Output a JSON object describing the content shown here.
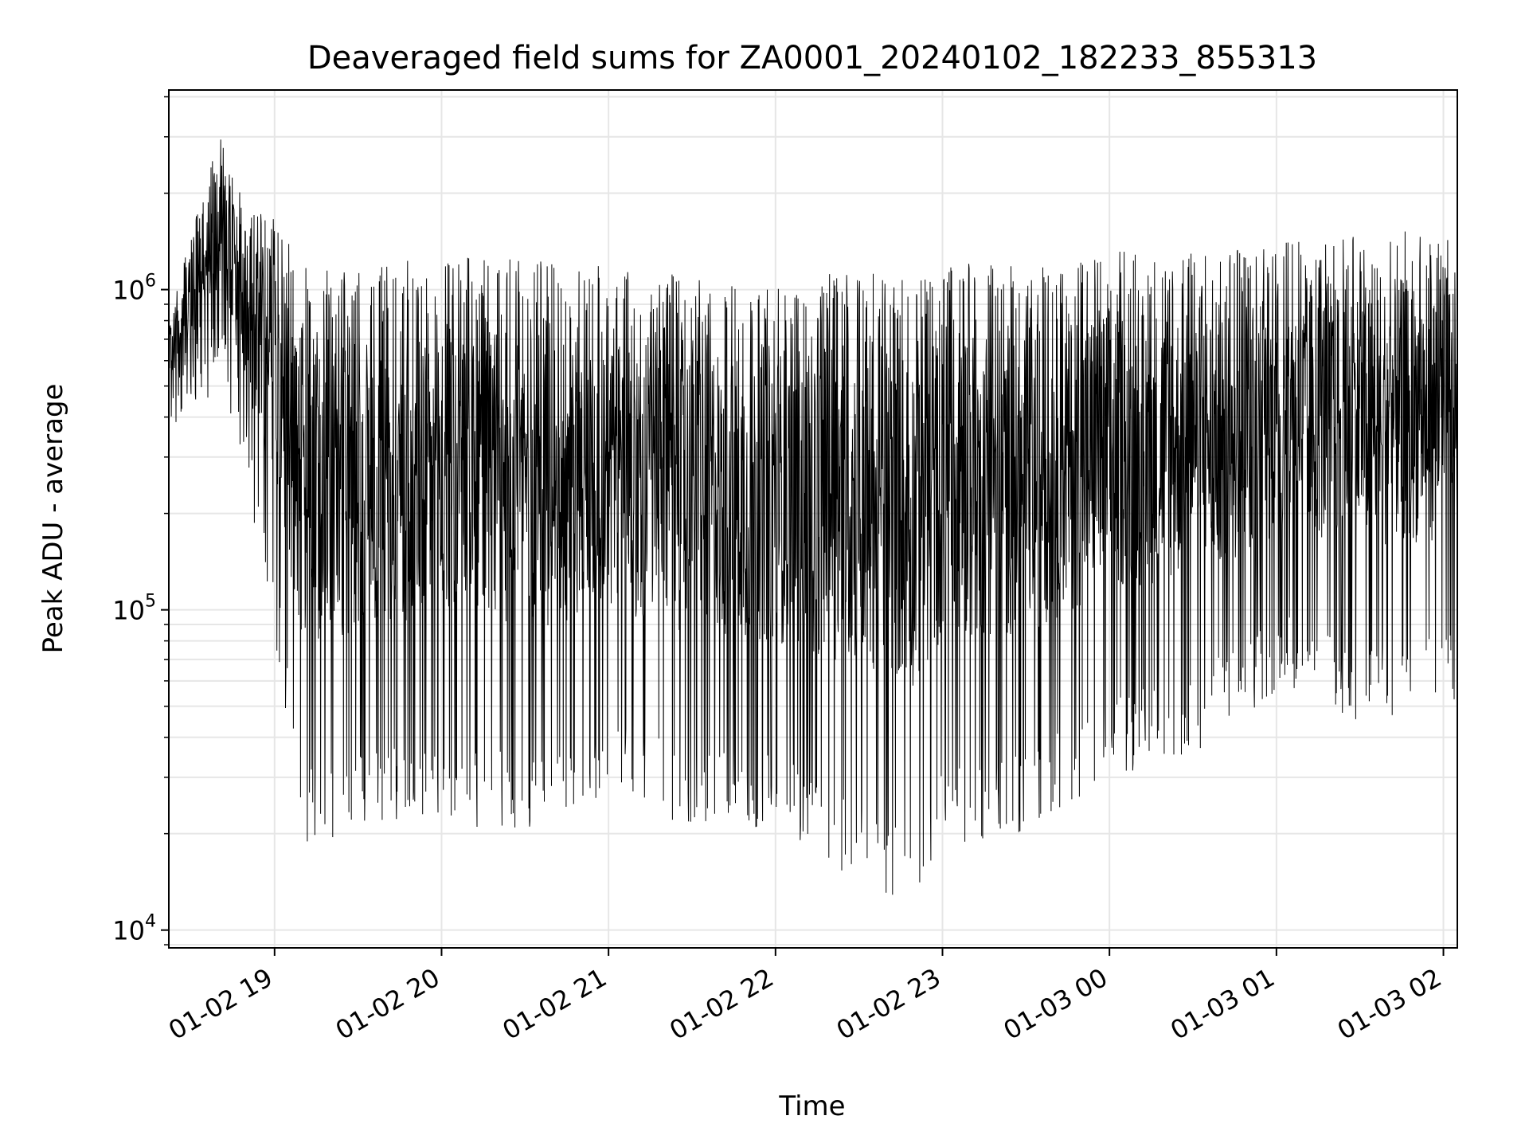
{
  "chart_data": {
    "type": "line",
    "title": "Deaveraged field sums for ZA0001_20240102_182233_855313",
    "xlabel": "Time",
    "ylabel": "Peak ADU - average",
    "yscale": "log",
    "xlim": [
      "2024-01-02 18:22",
      "2024-01-03 02:05"
    ],
    "ylim": [
      8800,
      4200000
    ],
    "grid": true,
    "line_color": "#000000",
    "x_ticks": [
      {
        "value": "2024-01-02 19:00",
        "label": "01-02 19"
      },
      {
        "value": "2024-01-02 20:00",
        "label": "01-02 20"
      },
      {
        "value": "2024-01-02 21:00",
        "label": "01-02 21"
      },
      {
        "value": "2024-01-02 22:00",
        "label": "01-02 22"
      },
      {
        "value": "2024-01-02 23:00",
        "label": "01-02 23"
      },
      {
        "value": "2024-01-03 00:00",
        "label": "01-03 00"
      },
      {
        "value": "2024-01-03 01:00",
        "label": "01-03 01"
      },
      {
        "value": "2024-01-03 02:00",
        "label": "01-03 02"
      }
    ],
    "y_ticks": [
      {
        "value": 10000,
        "base": "10",
        "exp": "4"
      },
      {
        "value": 100000,
        "base": "10",
        "exp": "5"
      },
      {
        "value": 1000000,
        "base": "10",
        "exp": "6"
      }
    ],
    "series": [
      {
        "envelope": [
          {
            "x": "2024-01-02 18:22",
            "upper": 800000,
            "lower": 400000
          },
          {
            "x": "2024-01-02 18:30",
            "upper": 1600000,
            "lower": 350000
          },
          {
            "x": "2024-01-02 18:40",
            "upper": 3100000,
            "lower": 550000
          },
          {
            "x": "2024-01-02 18:50",
            "upper": 1800000,
            "lower": 250000
          },
          {
            "x": "2024-01-02 19:00",
            "upper": 1700000,
            "lower": 80000
          },
          {
            "x": "2024-01-02 19:10",
            "upper": 1200000,
            "lower": 18000
          },
          {
            "x": "2024-01-02 19:20",
            "upper": 1150000,
            "lower": 19000
          },
          {
            "x": "2024-01-02 19:40",
            "upper": 1200000,
            "lower": 22000
          },
          {
            "x": "2024-01-02 20:00",
            "upper": 1300000,
            "lower": 21000
          },
          {
            "x": "2024-01-02 20:30",
            "upper": 1250000,
            "lower": 20000
          },
          {
            "x": "2024-01-02 21:00",
            "upper": 1200000,
            "lower": 26000
          },
          {
            "x": "2024-01-02 21:30",
            "upper": 1100000,
            "lower": 21000
          },
          {
            "x": "2024-01-02 22:00",
            "upper": 1000000,
            "lower": 20000
          },
          {
            "x": "2024-01-02 22:30",
            "upper": 1200000,
            "lower": 14000
          },
          {
            "x": "2024-01-02 22:50",
            "upper": 1100000,
            "lower": 11500
          },
          {
            "x": "2024-01-02 23:00",
            "upper": 1300000,
            "lower": 18000
          },
          {
            "x": "2024-01-02 23:30",
            "upper": 1200000,
            "lower": 20000
          },
          {
            "x": "2024-01-03 00:00",
            "upper": 1350000,
            "lower": 30000
          },
          {
            "x": "2024-01-03 00:30",
            "upper": 1300000,
            "lower": 35000
          },
          {
            "x": "2024-01-03 01:00",
            "upper": 1400000,
            "lower": 55000
          },
          {
            "x": "2024-01-03 01:30",
            "upper": 1500000,
            "lower": 45000
          },
          {
            "x": "2024-01-03 02:05",
            "upper": 1600000,
            "lower": 50000
          }
        ]
      }
    ]
  }
}
